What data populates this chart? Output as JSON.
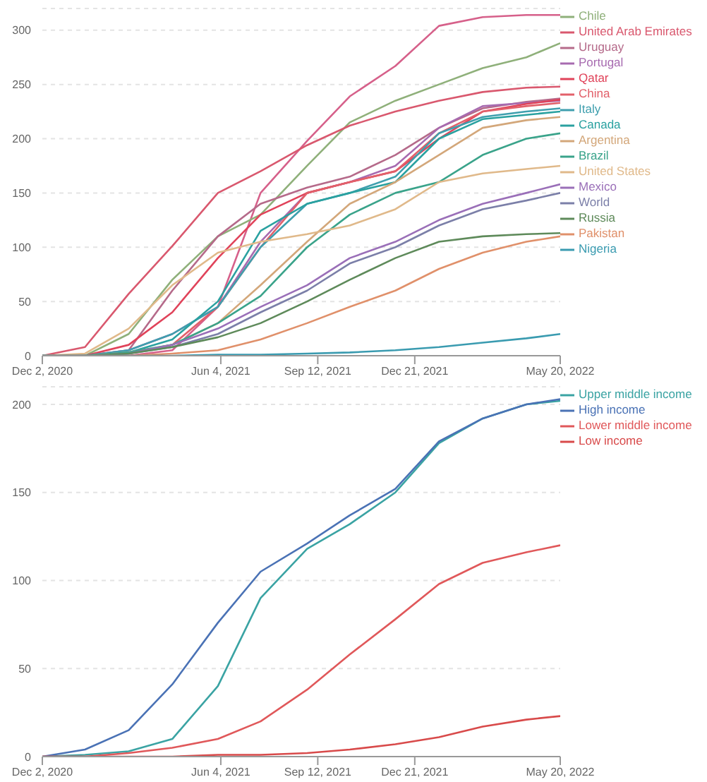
{
  "chart_data": [
    {
      "type": "line",
      "x": [
        "2020-12-02",
        "2021-01-15",
        "2021-03-01",
        "2021-04-15",
        "2021-06-01",
        "2021-07-15",
        "2021-09-01",
        "2021-10-15",
        "2021-12-01",
        "2022-01-15",
        "2022-03-01",
        "2022-04-15",
        "2022-05-20"
      ],
      "xlim": [
        "2020-12-02",
        "2022-05-20"
      ],
      "xticks": [
        {
          "value": "2020-12-02",
          "label": "Dec 2, 2020"
        },
        {
          "value": "2021-06-04",
          "label": "Jun 4, 2021"
        },
        {
          "value": "2021-09-12",
          "label": "Sep 12, 2021"
        },
        {
          "value": "2021-12-21",
          "label": "Dec 21, 2021"
        },
        {
          "value": "2022-05-20",
          "label": "May 20, 2022"
        }
      ],
      "ylim": [
        0,
        320
      ],
      "yticks": [
        0,
        50,
        100,
        150,
        200,
        250,
        300
      ],
      "grid": "y",
      "legend": "right",
      "marker": "none",
      "line_style": "solid",
      "series": [
        {
          "color": "#d6608a",
          "values": [
            0,
            0,
            0,
            5,
            45,
            150,
            198,
            239,
            267,
            304,
            312,
            314,
            314
          ]
        },
        {
          "name": "Chile",
          "color": "#8fb07a",
          "values": [
            0,
            0,
            20,
            70,
            110,
            130,
            175,
            215,
            235,
            250,
            265,
            275,
            288
          ]
        },
        {
          "name": "United Arab Emirates",
          "color": "#d9586e",
          "values": [
            0,
            8,
            57,
            101,
            150,
            170,
            194,
            212,
            225,
            235,
            243,
            247,
            248
          ]
        },
        {
          "name": "Uruguay",
          "color": "#b56a8a",
          "values": [
            0,
            0,
            5,
            60,
            110,
            140,
            155,
            165,
            185,
            210,
            228,
            234,
            237
          ]
        },
        {
          "name": "Portugal",
          "color": "#a76bb0",
          "values": [
            0,
            0,
            5,
            20,
            45,
            105,
            150,
            160,
            175,
            210,
            230,
            233,
            235
          ]
        },
        {
          "name": "Qatar",
          "color": "#e0435a",
          "values": [
            0,
            0,
            10,
            40,
            90,
            130,
            150,
            160,
            170,
            200,
            225,
            232,
            236
          ]
        },
        {
          "name": "China",
          "color": "#e2606a",
          "values": [
            0,
            0,
            2,
            10,
            45,
            100,
            150,
            160,
            170,
            205,
            225,
            230,
            233
          ]
        },
        {
          "name": "Italy",
          "color": "#3f9fae",
          "values": [
            0,
            0,
            5,
            20,
            45,
            100,
            140,
            150,
            165,
            205,
            220,
            225,
            228
          ]
        },
        {
          "name": "Canada",
          "color": "#2aa1a0",
          "values": [
            0,
            0,
            3,
            15,
            50,
            115,
            140,
            150,
            160,
            200,
            218,
            222,
            225
          ]
        },
        {
          "name": "Argentina",
          "color": "#d3a77a",
          "values": [
            0,
            0,
            3,
            10,
            30,
            65,
            105,
            140,
            160,
            185,
            210,
            217,
            220
          ]
        },
        {
          "name": "Brazil",
          "color": "#3aa38a",
          "values": [
            0,
            0,
            3,
            10,
            30,
            55,
            100,
            130,
            150,
            160,
            185,
            200,
            205
          ]
        },
        {
          "name": "United States",
          "color": "#e0b98a",
          "values": [
            0,
            2,
            25,
            65,
            95,
            105,
            112,
            120,
            135,
            160,
            168,
            172,
            175
          ]
        },
        {
          "name": "Mexico",
          "color": "#9a6fb8",
          "values": [
            0,
            0,
            2,
            10,
            25,
            45,
            65,
            90,
            105,
            125,
            140,
            150,
            158
          ]
        },
        {
          "name": "World",
          "color": "#7b7fa8",
          "values": [
            0,
            0,
            2,
            8,
            20,
            40,
            60,
            85,
            100,
            120,
            135,
            143,
            150
          ]
        },
        {
          "name": "Russia",
          "color": "#5e8a5a",
          "values": [
            0,
            0,
            2,
            8,
            17,
            30,
            50,
            70,
            90,
            105,
            110,
            112,
            113
          ]
        },
        {
          "name": "Pakistan",
          "color": "#e0906a",
          "values": [
            0,
            0,
            0,
            2,
            5,
            15,
            30,
            45,
            60,
            80,
            95,
            105,
            110
          ]
        },
        {
          "name": "Nigeria",
          "color": "#3a9bb0",
          "values": [
            0,
            0,
            0,
            0,
            1,
            1,
            2,
            3,
            5,
            8,
            12,
            16,
            20
          ]
        }
      ]
    },
    {
      "type": "line",
      "x": [
        "2020-12-02",
        "2021-01-15",
        "2021-03-01",
        "2021-04-15",
        "2021-06-01",
        "2021-07-15",
        "2021-09-01",
        "2021-10-15",
        "2021-12-01",
        "2022-01-15",
        "2022-03-01",
        "2022-04-15",
        "2022-05-20"
      ],
      "xlim": [
        "2020-12-02",
        "2022-05-20"
      ],
      "xticks": [
        {
          "value": "2020-12-02",
          "label": "Dec 2, 2020"
        },
        {
          "value": "2021-06-04",
          "label": "Jun 4, 2021"
        },
        {
          "value": "2021-09-12",
          "label": "Sep 12, 2021"
        },
        {
          "value": "2021-12-21",
          "label": "Dec 21, 2021"
        },
        {
          "value": "2022-05-20",
          "label": "May 20, 2022"
        }
      ],
      "ylim": [
        0,
        210
      ],
      "yticks": [
        0,
        50,
        100,
        150,
        200
      ],
      "grid": "y",
      "legend": "right",
      "marker": "none",
      "line_style": "solid",
      "series": [
        {
          "name": "Upper middle income",
          "color": "#3aa3a3",
          "values": [
            0,
            1,
            3,
            10,
            40,
            90,
            118,
            132,
            150,
            178,
            192,
            200,
            202
          ]
        },
        {
          "name": "High income",
          "color": "#4a72b5",
          "values": [
            0,
            4,
            15,
            41,
            76,
            105,
            121,
            137,
            152,
            179,
            192,
            200,
            203
          ]
        },
        {
          "name": "Lower middle income",
          "color": "#e0585a",
          "values": [
            0,
            0,
            2,
            5,
            10,
            20,
            38,
            58,
            78,
            98,
            110,
            116,
            120
          ]
        },
        {
          "name": "Low income",
          "color": "#d84a4a",
          "values": [
            0,
            0,
            0,
            0,
            1,
            1,
            2,
            4,
            7,
            11,
            17,
            21,
            23
          ]
        }
      ]
    }
  ]
}
